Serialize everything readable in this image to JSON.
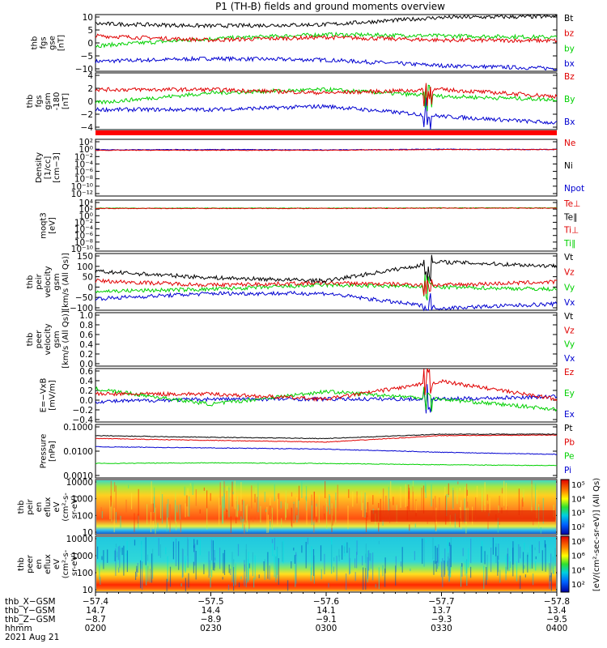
{
  "title": "P1 (TH-B) fields and ground moments overview",
  "colors": {
    "black": "#000000",
    "red": "#e00000",
    "green": "#00d000",
    "blue": "#0000d0"
  },
  "panels": [
    {
      "id": "fgs",
      "label": [
        "thb",
        "fgs",
        "gse",
        "[nT]"
      ],
      "yticks": [
        "10",
        "5",
        "0",
        "−5",
        "−10"
      ],
      "ylim": [
        -10,
        10
      ],
      "legend": [
        {
          "name": "Bt",
          "color": "black"
        },
        {
          "name": "bz",
          "color": "red"
        },
        {
          "name": "by",
          "color": "green"
        },
        {
          "name": "bx",
          "color": "blue"
        }
      ]
    },
    {
      "id": "fgs_gsm",
      "label": [
        "thb",
        "fgs",
        "gsm",
        "-180",
        "[nT]"
      ],
      "yticks": [
        "4",
        "2",
        "0",
        "−2",
        "−4"
      ],
      "ylim": [
        -4.5,
        4
      ],
      "legend": [
        {
          "name": "Bz",
          "color": "red"
        },
        {
          "name": "By",
          "color": "green"
        },
        {
          "name": "Bx",
          "color": "blue"
        }
      ]
    },
    {
      "id": "density",
      "label": [
        "Density",
        "[1/cc]",
        "[cm−3]"
      ],
      "yticks": [
        "10²",
        "10⁰",
        "10⁻²",
        "10⁻⁴",
        "10⁻⁶",
        "10⁻⁸",
        "10⁻¹⁰",
        "10⁻¹²"
      ],
      "ylim": [
        -12,
        2
      ],
      "legend": [
        {
          "name": "Ne",
          "color": "red"
        },
        {
          "name": "Ni",
          "color": "black"
        },
        {
          "name": "Npot",
          "color": "blue"
        }
      ]
    },
    {
      "id": "temp",
      "label": [
        "moqt3",
        "[eV]"
      ],
      "yticks": [
        "10⁴",
        "10²",
        "10⁰",
        "10⁻²",
        "10⁻⁴",
        "10⁻⁶",
        "10⁻⁸",
        "10⁻¹⁰"
      ],
      "ylim": [
        -10,
        4
      ],
      "legend": [
        {
          "name": "Te⊥",
          "color": "red"
        },
        {
          "name": "Te∥",
          "color": "black"
        },
        {
          "name": "Ti⊥",
          "color": "red"
        },
        {
          "name": "Ti∥",
          "color": "green"
        }
      ]
    },
    {
      "id": "vel",
      "label": [
        "thb",
        "peir",
        "velocity",
        "gsm",
        "[km/s (All Qs)]"
      ],
      "yticks": [
        "150",
        "100",
        "50",
        "0",
        "−50",
        "−100"
      ],
      "ylim": [
        -110,
        160
      ],
      "legend": [
        {
          "name": "Vt",
          "color": "black"
        },
        {
          "name": "Vz",
          "color": "red"
        },
        {
          "name": "Vy",
          "color": "green"
        },
        {
          "name": "Vx",
          "color": "blue"
        }
      ]
    },
    {
      "id": "vel_e",
      "label": [
        "thb",
        "peer",
        "velocity",
        "gsm",
        "[km/s (All Qs)]"
      ],
      "yticks": [
        "1.0",
        "0.8",
        "0.6",
        "0.4",
        "0.2",
        "0.0"
      ],
      "ylim": [
        0,
        1
      ],
      "legend": [
        {
          "name": "Vt",
          "color": "black"
        },
        {
          "name": "Vz",
          "color": "red"
        },
        {
          "name": "Vy",
          "color": "green"
        },
        {
          "name": "Vx",
          "color": "blue"
        }
      ]
    },
    {
      "id": "efield",
      "label": [
        "E=−VxB",
        "[mV/m]"
      ],
      "yticks": [
        "0.6",
        "0.4",
        "0.2",
        "0.0",
        "−0.2",
        "−0.4"
      ],
      "ylim": [
        -0.45,
        0.6
      ],
      "legend": [
        {
          "name": "Ez",
          "color": "red"
        },
        {
          "name": "Ey",
          "color": "green"
        },
        {
          "name": "Ex",
          "color": "blue"
        }
      ]
    },
    {
      "id": "pressure",
      "label": [
        "Pressure",
        "[nPa]"
      ],
      "yticks": [
        "0.1000",
        "0.0100",
        "0.0010"
      ],
      "ylim": [
        -3.5,
        -1
      ],
      "legend": [
        {
          "name": "Pt",
          "color": "black"
        },
        {
          "name": "Pb",
          "color": "red"
        },
        {
          "name": "Pe",
          "color": "green"
        },
        {
          "name": "Pi",
          "color": "blue"
        }
      ]
    },
    {
      "id": "spec_i",
      "label": [
        "thb",
        "peir",
        "en",
        "eflux",
        "eV",
        "(cm²-s-",
        "sr-eV)"
      ],
      "yticks": [
        "10000",
        "1000",
        "100",
        "10"
      ]
    },
    {
      "id": "spec_e",
      "label": [
        "thb",
        "peer",
        "en",
        "eflux",
        "eV",
        "(cm²-s-",
        "sr-eV)"
      ],
      "yticks": [
        "10000",
        "1000",
        "100",
        "10"
      ]
    }
  ],
  "colorbar_i": {
    "ticks": [
      "10⁵",
      "10⁴",
      "10³",
      "10²"
    ]
  },
  "colorbar_e": {
    "ticks": [
      "10⁸",
      "10⁶",
      "10⁴",
      "10²"
    ]
  },
  "colorbar_label": "[eV/(cm²-sec-sr-eV)] (All Qs)",
  "xaxis": {
    "row_labels": [
      "thb_X−GSM",
      "thb_Y−GSM",
      "thb_Z−GSM",
      "hhmm",
      "2021 Aug 21"
    ],
    "columns": [
      [
        "−57.4",
        "14.7",
        "−8.7",
        "0200"
      ],
      [
        "−57.5",
        "14.4",
        "−8.9",
        "0230"
      ],
      [
        "−57.6",
        "14.1",
        "−9.1",
        "0300"
      ],
      [
        "−57.7",
        "13.7",
        "−9.3",
        "0330"
      ],
      [
        "−57.8",
        "13.4",
        "−9.5",
        "0400"
      ]
    ]
  },
  "chart_data": [
    {
      "type": "line",
      "title": "P1 (TH-B) fields and ground moments overview",
      "ylabel": "thb fgs gse [nT]",
      "ylim": [
        -10,
        10
      ],
      "x": [
        "0200",
        "0230",
        "0300",
        "0330",
        "0400"
      ],
      "series": [
        {
          "name": "Bt",
          "values": [
            6.8,
            6.0,
            6.5,
            9.0,
            9.3
          ]
        },
        {
          "name": "bz",
          "values": [
            2.5,
            1.0,
            2.0,
            1.0,
            0.8
          ]
        },
        {
          "name": "by",
          "values": [
            -1.0,
            1.5,
            3.0,
            2.5,
            2.0
          ]
        },
        {
          "name": "bx",
          "values": [
            -6.5,
            -5.5,
            -6.0,
            -8.0,
            -9.0
          ]
        }
      ]
    },
    {
      "type": "line",
      "ylabel": "thb fgs gsm -180 [nT]",
      "ylim": [
        -4.5,
        4
      ],
      "x": [
        "0200",
        "0230",
        "0300",
        "0330",
        "0400"
      ],
      "series": [
        {
          "name": "Bz",
          "values": [
            1.5,
            1.5,
            1.0,
            1.5,
            0.5
          ]
        },
        {
          "name": "By",
          "values": [
            -0.5,
            1.0,
            1.5,
            0.5,
            0.0
          ]
        },
        {
          "name": "Bx",
          "values": [
            -1.5,
            -1.5,
            -1.0,
            -2.5,
            -3.5
          ]
        }
      ]
    },
    {
      "type": "line",
      "ylabel": "Density [1/cc] [cm−3]",
      "ylim": [
        -12,
        2
      ],
      "yscale": "log",
      "x": [
        "0200",
        "0230",
        "0300",
        "0330",
        "0400"
      ],
      "series": [
        {
          "name": "Ne",
          "values": [
            0.2,
            0.2,
            0.2,
            0.3,
            0.3
          ]
        },
        {
          "name": "Npot",
          "values": [
            0.25,
            0.3,
            0.25,
            0.35,
            0.3
          ]
        }
      ]
    },
    {
      "type": "line",
      "ylabel": "moqt3 [eV]",
      "ylim": [
        -10,
        4
      ],
      "yscale": "log",
      "x": [
        "0200",
        "0230",
        "0300",
        "0330",
        "0400"
      ],
      "series": [
        {
          "name": "Te⊥",
          "values": [
            50,
            50,
            50,
            60,
            60
          ]
        },
        {
          "name": "Ti∥",
          "values": [
            60,
            60,
            60,
            70,
            70
          ]
        }
      ]
    },
    {
      "type": "line",
      "ylabel": "thb peir velocity gsm [km/s (All Qs)]",
      "ylim": [
        -110,
        160
      ],
      "x": [
        "0200",
        "0230",
        "0300",
        "0330",
        "0400"
      ],
      "series": [
        {
          "name": "Vt",
          "values": [
            75,
            45,
            30,
            120,
            100
          ]
        },
        {
          "name": "Vz",
          "values": [
            30,
            10,
            20,
            10,
            25
          ]
        },
        {
          "name": "Vy",
          "values": [
            -20,
            -10,
            10,
            0,
            -10
          ]
        },
        {
          "name": "Vx",
          "values": [
            -55,
            -30,
            -30,
            -100,
            -80
          ]
        }
      ]
    },
    {
      "type": "line",
      "ylabel": "thb peer velocity gsm [km/s (All Qs)]",
      "ylim": [
        0,
        1
      ],
      "x": [
        "0200",
        "0230",
        "0300",
        "0330",
        "0400"
      ],
      "series": []
    },
    {
      "type": "line",
      "ylabel": "E=−VxB [mV/m]",
      "ylim": [
        -0.45,
        0.6
      ],
      "x": [
        "0200",
        "0230",
        "0300",
        "0330",
        "0400"
      ],
      "series": [
        {
          "name": "Ez",
          "values": [
            0.1,
            0.1,
            0.0,
            0.35,
            0.0
          ]
        },
        {
          "name": "Ey",
          "values": [
            0.2,
            -0.1,
            0.15,
            0.0,
            -0.2
          ]
        },
        {
          "name": "Ex",
          "values": [
            -0.05,
            0.0,
            0.0,
            0.0,
            0.05
          ]
        }
      ]
    },
    {
      "type": "line",
      "ylabel": "Pressure [nPa]",
      "ylim": [
        0.0003,
        0.1
      ],
      "yscale": "log",
      "x": [
        "0200",
        "0230",
        "0300",
        "0330",
        "0400"
      ],
      "series": [
        {
          "name": "Pt",
          "values": [
            0.03,
            0.025,
            0.022,
            0.035,
            0.035
          ]
        },
        {
          "name": "Pb",
          "values": [
            0.022,
            0.018,
            0.015,
            0.03,
            0.032
          ]
        },
        {
          "name": "Pe",
          "values": [
            0.0015,
            0.0016,
            0.0015,
            0.0013,
            0.0012
          ]
        },
        {
          "name": "Pi",
          "values": [
            0.009,
            0.008,
            0.007,
            0.005,
            0.004
          ]
        }
      ]
    }
  ]
}
